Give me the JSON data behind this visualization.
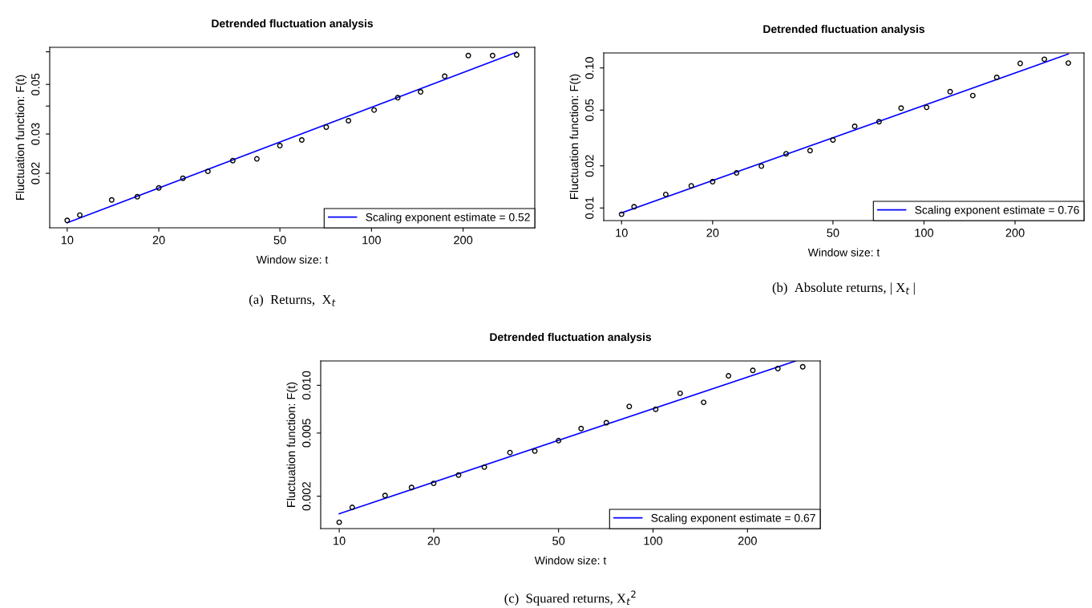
{
  "chart_data": [
    {
      "type": "scatter",
      "title": "Detrended fluctuation analysis",
      "xlabel": "Window size: t",
      "ylabel": "Fluctuation function: F(t)",
      "log": "xy",
      "grid": false,
      "legend": "bottom right",
      "xlim": [
        8.76,
        344
      ],
      "ylim": [
        0.0114,
        0.0733
      ],
      "xticks": [
        10,
        20,
        50,
        100,
        200
      ],
      "yticks": [
        0.02,
        0.03,
        {
          "value": 0.04,
          "label": null
        },
        0.05,
        {
          "value": 0.07,
          "label": null
        }
      ],
      "annotations": [
        "(a)  Returns,  X$_{t}$"
      ],
      "series": [
        {
          "color": "#000000",
          "marker": "circle",
          "x": [
            10,
            11,
            14,
            17,
            20,
            24,
            29,
            35,
            42,
            50,
            59,
            71,
            84,
            102,
            122,
            145,
            174,
            208,
            250,
            300
          ],
          "values": [
            0.0123,
            0.013,
            0.0152,
            0.0157,
            0.0172,
            0.019,
            0.0204,
            0.0228,
            0.0232,
            0.0266,
            0.0282,
            0.0322,
            0.0344,
            0.0384,
            0.0436,
            0.0463,
            0.0544,
            0.0673,
            0.0673,
            0.0678
          ]
        },
        {
          "type": "line",
          "name": "Scaling exponent estimate = 0.52",
          "color": "#0000ff",
          "marker": "none",
          "x": [
            10,
            300
          ],
          "values": [
            0.012,
            0.0697
          ]
        }
      ]
    },
    {
      "type": "scatter",
      "title": "Detrended fluctuation analysis",
      "xlabel": "Window size: t",
      "ylabel": "Fluctuation function: F(t)",
      "log": "xy",
      "grid": false,
      "legend": "bottom right",
      "xlim": [
        8.73,
        338
      ],
      "ylim": [
        0.00813,
        0.128
      ],
      "xticks": [
        10,
        20,
        50,
        100,
        200
      ],
      "yticks": [
        0.01,
        0.02,
        0.05,
        {
          "value": 0.1,
          "label": "0.10"
        }
      ],
      "annotations": [
        "(b)  Absolute returns, | X$_{t}$ |"
      ],
      "series": [
        {
          "color": "#000000",
          "marker": "circle",
          "x": [
            10,
            11,
            14,
            17,
            20,
            24,
            29,
            35,
            42,
            50,
            59,
            71,
            84,
            102,
            122,
            145,
            174,
            208,
            250,
            300
          ],
          "values": [
            0.00902,
            0.0102,
            0.0125,
            0.0144,
            0.0154,
            0.0178,
            0.0199,
            0.0244,
            0.0257,
            0.0306,
            0.0383,
            0.0413,
            0.0517,
            0.0523,
            0.0677,
            0.0635,
            0.0856,
            0.1077,
            0.1154,
            0.1084
          ]
        },
        {
          "type": "line",
          "name": "Scaling exponent estimate = 0.76",
          "color": "#0000ff",
          "marker": "none",
          "x": [
            10,
            300
          ],
          "values": [
            0.00923,
            0.1258
          ]
        }
      ]
    },
    {
      "type": "scatter",
      "title": "Detrended fluctuation analysis",
      "xlabel": "Window size: t",
      "ylabel": "Fluctuation function: F(t)",
      "log": "xy",
      "grid": false,
      "legend": "bottom right",
      "xlim": [
        8.73,
        341
      ],
      "ylim": [
        0.00125,
        0.01424
      ],
      "xticks": [
        10,
        20,
        50,
        100,
        200
      ],
      "yticks": [
        0.002,
        0.005,
        {
          "value": 0.01,
          "label": "0.010"
        }
      ],
      "annotations": [
        "(c)  Squared returns, X$_{t}$$^{2}$"
      ],
      "series": [
        {
          "color": "#000000",
          "marker": "circle",
          "x": [
            10,
            11,
            14,
            17,
            20,
            24,
            29,
            35,
            42,
            50,
            59,
            71,
            84,
            102,
            122,
            145,
            174,
            208,
            250,
            300
          ],
          "values": [
            0.00137,
            0.0017,
            0.00202,
            0.00227,
            0.00241,
            0.00272,
            0.00305,
            0.00377,
            0.00385,
            0.00448,
            0.00534,
            0.00581,
            0.00736,
            0.00706,
            0.0089,
            0.00781,
            0.01147,
            0.01242,
            0.01275,
            0.01309
          ]
        },
        {
          "type": "line",
          "name": "Scaling exponent estimate = 0.67",
          "color": "#0000ff",
          "marker": "none",
          "x": [
            10,
            285
          ],
          "values": [
            0.00155,
            0.01424
          ]
        }
      ]
    }
  ]
}
